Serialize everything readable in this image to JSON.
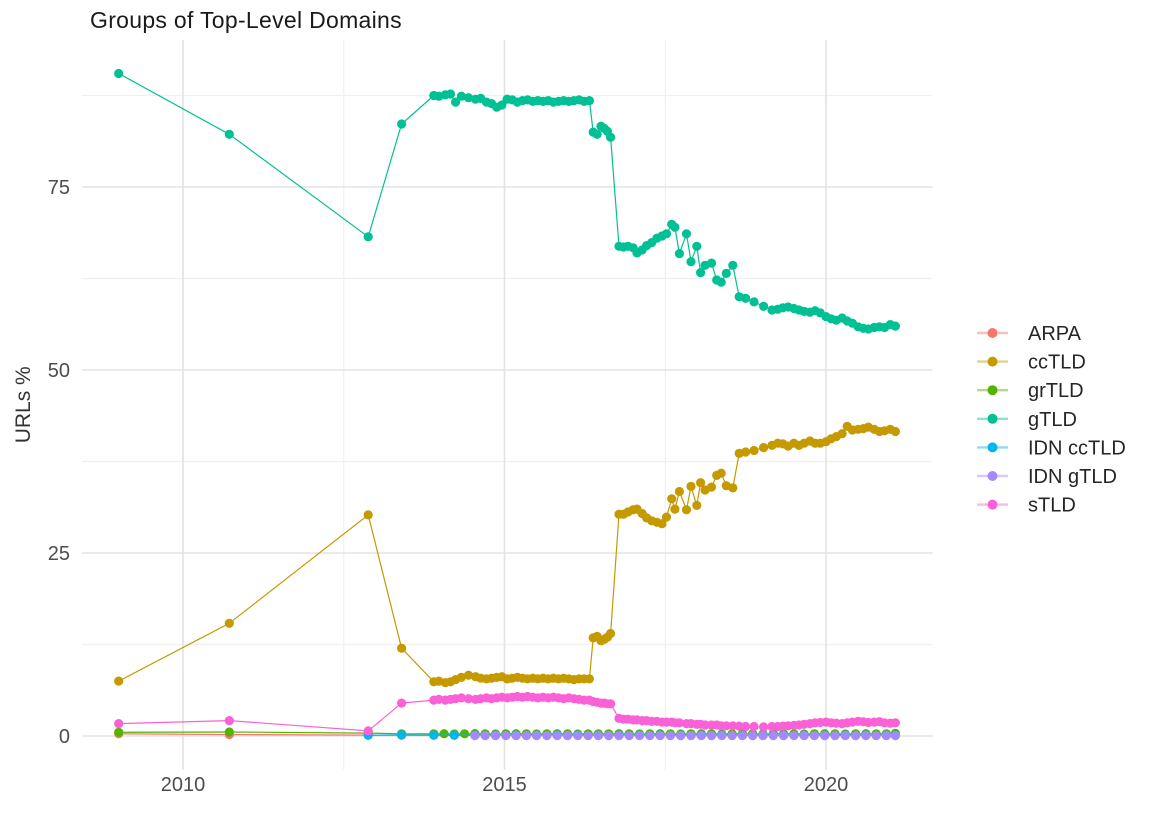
{
  "page": {
    "background": "#ffffff"
  },
  "chart_data": {
    "type": "line",
    "title": "Groups of Top-Level Domains",
    "xlabel": "",
    "ylabel": "URLs %",
    "grid": true,
    "legend_position": "right",
    "xlim": [
      2008.43,
      2021.66
    ],
    "ylim": [
      -4.6,
      95.1
    ],
    "x_ticks": [
      2010,
      2015,
      2020
    ],
    "x_tick_labels": [
      "2010",
      "2015",
      "2020"
    ],
    "x_minor": [
      2012.5,
      2017.5
    ],
    "y_ticks": [
      0,
      25,
      50,
      75
    ],
    "y_tick_labels": [
      "0",
      "25",
      "50",
      "75"
    ],
    "y_minor": [
      12.5,
      37.5,
      62.5,
      87.5
    ],
    "survey_x": [
      2009.0,
      2010.72,
      2012.88,
      2013.4,
      2013.9,
      2013.98,
      2014.08,
      2014.16,
      2014.24,
      2014.33,
      2014.44,
      2014.55,
      2014.63,
      2014.72,
      2014.8,
      2014.88,
      2014.96,
      2015.04,
      2015.12,
      2015.2,
      2015.28,
      2015.36,
      2015.44,
      2015.52,
      2015.6,
      2015.68,
      2015.76,
      2015.84,
      2015.92,
      2016.0,
      2016.08,
      2016.16,
      2016.24,
      2016.32,
      2016.38,
      2016.44,
      2016.5,
      2016.55,
      2016.6,
      2016.65,
      2016.78,
      2016.85,
      2016.92,
      2017.0,
      2017.06,
      2017.14,
      2017.21,
      2017.29,
      2017.37,
      2017.45,
      2017.52,
      2017.6,
      2017.65,
      2017.72,
      2017.83,
      2017.9,
      2017.99,
      2018.05,
      2018.12,
      2018.22,
      2018.3,
      2018.37,
      2018.45,
      2018.55,
      2018.65,
      2018.75,
      2018.88,
      2019.03,
      2019.16,
      2019.25,
      2019.33,
      2019.41,
      2019.5,
      2019.58,
      2019.66,
      2019.75,
      2019.83,
      2019.91,
      2020.0,
      2020.08,
      2020.16,
      2020.25,
      2020.33,
      2020.41,
      2020.5,
      2020.58,
      2020.66,
      2020.75,
      2020.83,
      2020.91,
      2021.0,
      2021.08
    ],
    "series": [
      {
        "name": "ARPA",
        "color": "#F8766D",
        "points": [
          [
            2009.0,
            0.3
          ],
          [
            2010.72,
            0.2
          ],
          [
            2012.88,
            0.12
          ],
          [
            2013.4,
            0.1
          ],
          [
            2013.9,
            0.1
          ],
          [
            2014.22,
            0.1
          ],
          [
            2014.54,
            0.1
          ],
          [
            2014.86,
            0.1
          ],
          [
            2015.18,
            0.1
          ],
          [
            2015.5,
            0.1
          ],
          [
            2015.82,
            0.1
          ],
          [
            2016.14,
            0.1
          ],
          [
            2016.46,
            0.1
          ],
          [
            2016.78,
            0.1
          ],
          [
            2017.1,
            0.1
          ],
          [
            2017.42,
            0.1
          ],
          [
            2017.74,
            0.1
          ],
          [
            2018.06,
            0.1
          ],
          [
            2018.38,
            0.1
          ],
          [
            2018.7,
            0.1
          ],
          [
            2019.02,
            0.1
          ],
          [
            2019.34,
            0.1
          ],
          [
            2019.66,
            0.1
          ],
          [
            2019.98,
            0.1
          ],
          [
            2020.3,
            0.1
          ],
          [
            2020.62,
            0.1
          ],
          [
            2020.94,
            0.1
          ],
          [
            2021.08,
            0.1
          ]
        ]
      },
      {
        "name": "ccTLD",
        "color": "#C49A00",
        "y": [
          7.5,
          15.4,
          30.2,
          12.0,
          7.4,
          7.5,
          7.3,
          7.4,
          7.7,
          8.0,
          8.3,
          8.1,
          7.9,
          7.8,
          7.9,
          8.0,
          8.1,
          7.8,
          7.9,
          8.0,
          7.9,
          7.8,
          7.9,
          7.8,
          7.9,
          7.8,
          7.9,
          7.8,
          7.9,
          7.8,
          7.7,
          7.8,
          7.8,
          7.8,
          13.4,
          13.6,
          13.0,
          13.2,
          13.5,
          14.0,
          30.3,
          30.3,
          30.6,
          30.9,
          31.0,
          30.4,
          29.8,
          29.4,
          29.2,
          29.0,
          29.9,
          32.4,
          31.0,
          33.4,
          30.9,
          34.1,
          31.5,
          34.6,
          33.6,
          34.0,
          35.6,
          35.9,
          34.2,
          33.9,
          38.6,
          38.8,
          39.0,
          39.4,
          39.7,
          40.0,
          39.9,
          39.6,
          40.0,
          39.7,
          40.0,
          40.3,
          40.0,
          40.0,
          40.2,
          40.6,
          40.9,
          41.3,
          42.3,
          41.8,
          41.9,
          42.0,
          42.2,
          41.9,
          41.6,
          41.7,
          41.9,
          41.6
        ]
      },
      {
        "name": "grTLD",
        "color": "#53B400",
        "points": [
          [
            2009.0,
            0.5
          ],
          [
            2010.72,
            0.55
          ],
          [
            2012.88,
            0.4
          ],
          [
            2013.4,
            0.3
          ],
          [
            2013.9,
            0.3
          ],
          [
            2014.06,
            0.32
          ],
          [
            2014.22,
            0.28
          ],
          [
            2014.38,
            0.3
          ],
          [
            2014.54,
            0.33
          ],
          [
            2014.7,
            0.3
          ],
          [
            2014.86,
            0.28
          ],
          [
            2015.02,
            0.3
          ],
          [
            2015.18,
            0.32
          ],
          [
            2015.34,
            0.3
          ],
          [
            2015.5,
            0.28
          ],
          [
            2015.66,
            0.3
          ],
          [
            2015.82,
            0.32
          ],
          [
            2015.98,
            0.3
          ],
          [
            2016.14,
            0.28
          ],
          [
            2016.3,
            0.3
          ],
          [
            2016.46,
            0.3
          ],
          [
            2016.62,
            0.3
          ],
          [
            2016.78,
            0.32
          ],
          [
            2016.94,
            0.3
          ],
          [
            2017.1,
            0.28
          ],
          [
            2017.26,
            0.3
          ],
          [
            2017.42,
            0.32
          ],
          [
            2017.58,
            0.3
          ],
          [
            2017.74,
            0.28
          ],
          [
            2017.9,
            0.3
          ],
          [
            2018.06,
            0.32
          ],
          [
            2018.22,
            0.3
          ],
          [
            2018.38,
            0.28
          ],
          [
            2018.54,
            0.3
          ],
          [
            2018.7,
            0.32
          ],
          [
            2018.86,
            0.3
          ],
          [
            2019.02,
            0.28
          ],
          [
            2019.18,
            0.3
          ],
          [
            2019.34,
            0.32
          ],
          [
            2019.5,
            0.3
          ],
          [
            2019.66,
            0.28
          ],
          [
            2019.82,
            0.3
          ],
          [
            2019.98,
            0.32
          ],
          [
            2020.14,
            0.3
          ],
          [
            2020.3,
            0.28
          ],
          [
            2020.46,
            0.3
          ],
          [
            2020.62,
            0.32
          ],
          [
            2020.78,
            0.3
          ],
          [
            2020.94,
            0.3
          ],
          [
            2021.08,
            0.35
          ]
        ]
      },
      {
        "name": "gTLD",
        "color": "#00C094",
        "y": [
          90.5,
          82.2,
          68.2,
          83.6,
          87.5,
          87.4,
          87.6,
          87.7,
          86.6,
          87.4,
          87.2,
          87.0,
          87.1,
          86.6,
          86.4,
          85.9,
          86.2,
          87.0,
          86.9,
          86.6,
          86.8,
          86.9,
          86.7,
          86.8,
          86.7,
          86.8,
          86.6,
          86.7,
          86.8,
          86.7,
          86.8,
          86.9,
          86.7,
          86.8,
          82.5,
          82.2,
          83.3,
          83.0,
          82.6,
          81.8,
          66.9,
          66.8,
          66.9,
          66.7,
          66.0,
          66.4,
          67.0,
          67.4,
          68.0,
          68.3,
          68.6,
          69.9,
          69.5,
          65.9,
          68.6,
          64.8,
          66.9,
          63.3,
          64.3,
          64.6,
          62.3,
          62.0,
          63.2,
          64.3,
          60.0,
          59.8,
          59.3,
          58.7,
          58.2,
          58.3,
          58.5,
          58.6,
          58.4,
          58.2,
          58.0,
          57.9,
          58.1,
          57.8,
          57.3,
          57.0,
          56.8,
          57.1,
          56.7,
          56.4,
          55.9,
          55.7,
          55.6,
          55.8,
          55.9,
          55.8,
          56.2,
          56.0
        ]
      },
      {
        "name": "IDN ccTLD",
        "color": "#00B6EB",
        "points": [
          [
            2012.88,
            0.1
          ],
          [
            2013.4,
            0.15
          ],
          [
            2013.9,
            0.12
          ],
          [
            2014.22,
            0.12
          ],
          [
            2014.54,
            0.12
          ],
          [
            2014.86,
            0.12
          ],
          [
            2015.18,
            0.12
          ],
          [
            2015.5,
            0.12
          ],
          [
            2015.82,
            0.12
          ],
          [
            2016.14,
            0.12
          ],
          [
            2016.46,
            0.12
          ],
          [
            2016.78,
            0.12
          ],
          [
            2017.1,
            0.12
          ],
          [
            2017.42,
            0.12
          ],
          [
            2017.74,
            0.12
          ],
          [
            2018.06,
            0.12
          ],
          [
            2018.38,
            0.12
          ],
          [
            2018.7,
            0.12
          ],
          [
            2019.02,
            0.12
          ],
          [
            2019.34,
            0.12
          ],
          [
            2019.66,
            0.12
          ],
          [
            2019.98,
            0.12
          ],
          [
            2020.3,
            0.12
          ],
          [
            2020.62,
            0.12
          ],
          [
            2020.94,
            0.12
          ],
          [
            2021.08,
            0.12
          ]
        ]
      },
      {
        "name": "IDN gTLD",
        "color": "#A58AFF",
        "points": [
          [
            2014.54,
            0.05
          ],
          [
            2014.7,
            0.05
          ],
          [
            2014.86,
            0.05
          ],
          [
            2015.02,
            0.05
          ],
          [
            2015.18,
            0.05
          ],
          [
            2015.34,
            0.05
          ],
          [
            2015.5,
            0.05
          ],
          [
            2015.66,
            0.05
          ],
          [
            2015.82,
            0.05
          ],
          [
            2015.98,
            0.05
          ],
          [
            2016.14,
            0.05
          ],
          [
            2016.3,
            0.05
          ],
          [
            2016.46,
            0.05
          ],
          [
            2016.62,
            0.05
          ],
          [
            2016.78,
            0.05
          ],
          [
            2016.94,
            0.05
          ],
          [
            2017.1,
            0.05
          ],
          [
            2017.26,
            0.05
          ],
          [
            2017.42,
            0.05
          ],
          [
            2017.58,
            0.05
          ],
          [
            2017.74,
            0.05
          ],
          [
            2017.9,
            0.05
          ],
          [
            2018.06,
            0.05
          ],
          [
            2018.22,
            0.05
          ],
          [
            2018.38,
            0.05
          ],
          [
            2018.54,
            0.05
          ],
          [
            2018.7,
            0.05
          ],
          [
            2018.86,
            0.05
          ],
          [
            2019.02,
            0.05
          ],
          [
            2019.18,
            0.05
          ],
          [
            2019.34,
            0.05
          ],
          [
            2019.5,
            0.05
          ],
          [
            2019.66,
            0.05
          ],
          [
            2019.82,
            0.05
          ],
          [
            2019.98,
            0.05
          ],
          [
            2020.14,
            0.05
          ],
          [
            2020.3,
            0.05
          ],
          [
            2020.46,
            0.05
          ],
          [
            2020.62,
            0.05
          ],
          [
            2020.78,
            0.05
          ],
          [
            2020.94,
            0.05
          ],
          [
            2021.08,
            0.05
          ]
        ]
      },
      {
        "name": "sTLD",
        "color": "#FB61D7",
        "y": [
          1.7,
          2.1,
          0.7,
          4.5,
          4.9,
          5.0,
          4.9,
          5.0,
          5.1,
          5.2,
          5.1,
          5.0,
          5.1,
          5.2,
          5.1,
          5.2,
          5.3,
          5.2,
          5.3,
          5.4,
          5.3,
          5.4,
          5.3,
          5.2,
          5.3,
          5.2,
          5.3,
          5.2,
          5.1,
          5.2,
          5.1,
          5.0,
          4.9,
          4.9,
          4.7,
          4.6,
          4.5,
          4.5,
          4.4,
          4.4,
          2.4,
          2.3,
          2.3,
          2.2,
          2.2,
          2.1,
          2.1,
          2.0,
          2.0,
          1.9,
          1.9,
          1.9,
          1.8,
          1.8,
          1.7,
          1.7,
          1.6,
          1.6,
          1.5,
          1.5,
          1.5,
          1.4,
          1.4,
          1.4,
          1.35,
          1.3,
          1.3,
          1.25,
          1.3,
          1.3,
          1.35,
          1.4,
          1.45,
          1.5,
          1.6,
          1.7,
          1.8,
          1.85,
          1.9,
          1.8,
          1.75,
          1.7,
          1.8,
          1.9,
          2.0,
          1.95,
          1.85,
          1.9,
          1.95,
          1.8,
          1.75,
          1.8
        ]
      }
    ],
    "style": {
      "grid_major_color": "#e3e3e3",
      "grid_minor_color": "#f0f0f0",
      "point_radius": 4.6,
      "line_width": 1.2
    }
  }
}
